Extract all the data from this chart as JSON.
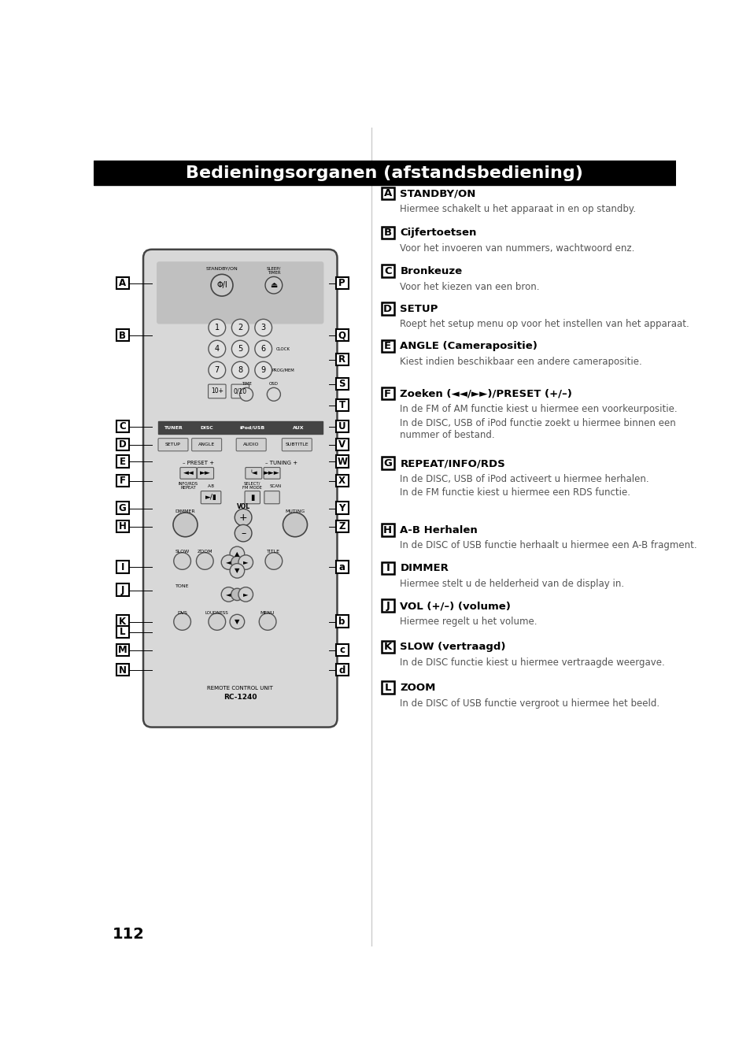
{
  "title": "Bedieningsorganen (afstandsbediening)",
  "title_bg": "#000000",
  "title_color": "#ffffff",
  "page_number": "112",
  "bg_color": "#ffffff",
  "items": [
    {
      "label": "A",
      "heading": "STANDBY/ON",
      "body": [
        "Hiermee schakelt u het apparaat in en op standby."
      ],
      "extra_body": []
    },
    {
      "label": "B",
      "heading": "Cijfertoetsen",
      "body": [
        "Voor het invoeren van nummers, wachtwoord enz."
      ],
      "extra_body": []
    },
    {
      "label": "C",
      "heading": "Bronkeuze",
      "body": [
        "Voor het kiezen van een bron."
      ],
      "extra_body": []
    },
    {
      "label": "D",
      "heading": "SETUP",
      "body": [
        "Roept het setup menu op voor het instellen van het apparaat."
      ],
      "extra_body": []
    },
    {
      "label": "E",
      "heading": "ANGLE (Camerapositie)",
      "body": [
        "Kiest indien beschikbaar een andere camerapositie."
      ],
      "extra_body": []
    },
    {
      "label": "F",
      "heading": "Zoeken (◄◄/►►)/PRESET (+/–)",
      "body": [
        "In de FM of AM functie kiest u hiermee een voorkeurpositie."
      ],
      "extra_body": [
        "In de DISC, USB of iPod functie zoekt u hiermee binnen een\nnummer of bestand."
      ]
    },
    {
      "label": "G",
      "heading": "REPEAT/INFO/RDS",
      "body": [
        "In de DISC, USB of iPod activeert u hiermee herhalen."
      ],
      "extra_body": [
        "In de FM functie kiest u hiermee een RDS functie."
      ]
    },
    {
      "label": "H",
      "heading": "A-B Herhalen",
      "body": [
        "In de DISC of USB functie herhaalt u hiermee een A-B fragment."
      ],
      "extra_body": []
    },
    {
      "label": "I",
      "heading": "DIMMER",
      "body": [
        "Hiermee stelt u de helderheid van de display in."
      ],
      "extra_body": []
    },
    {
      "label": "J",
      "heading": "VOL (+/–) (volume)",
      "body": [
        "Hiermee regelt u het volume."
      ],
      "extra_body": []
    },
    {
      "label": "K",
      "heading": "SLOW (vertraagd)",
      "body": [
        "In de DISC functie kiest u hiermee vertraagde weergave."
      ],
      "extra_body": []
    },
    {
      "label": "L",
      "heading": "ZOOM",
      "body": [
        "In de DISC of USB functie vergroot u hiermee het beeld."
      ],
      "extra_body": []
    }
  ]
}
